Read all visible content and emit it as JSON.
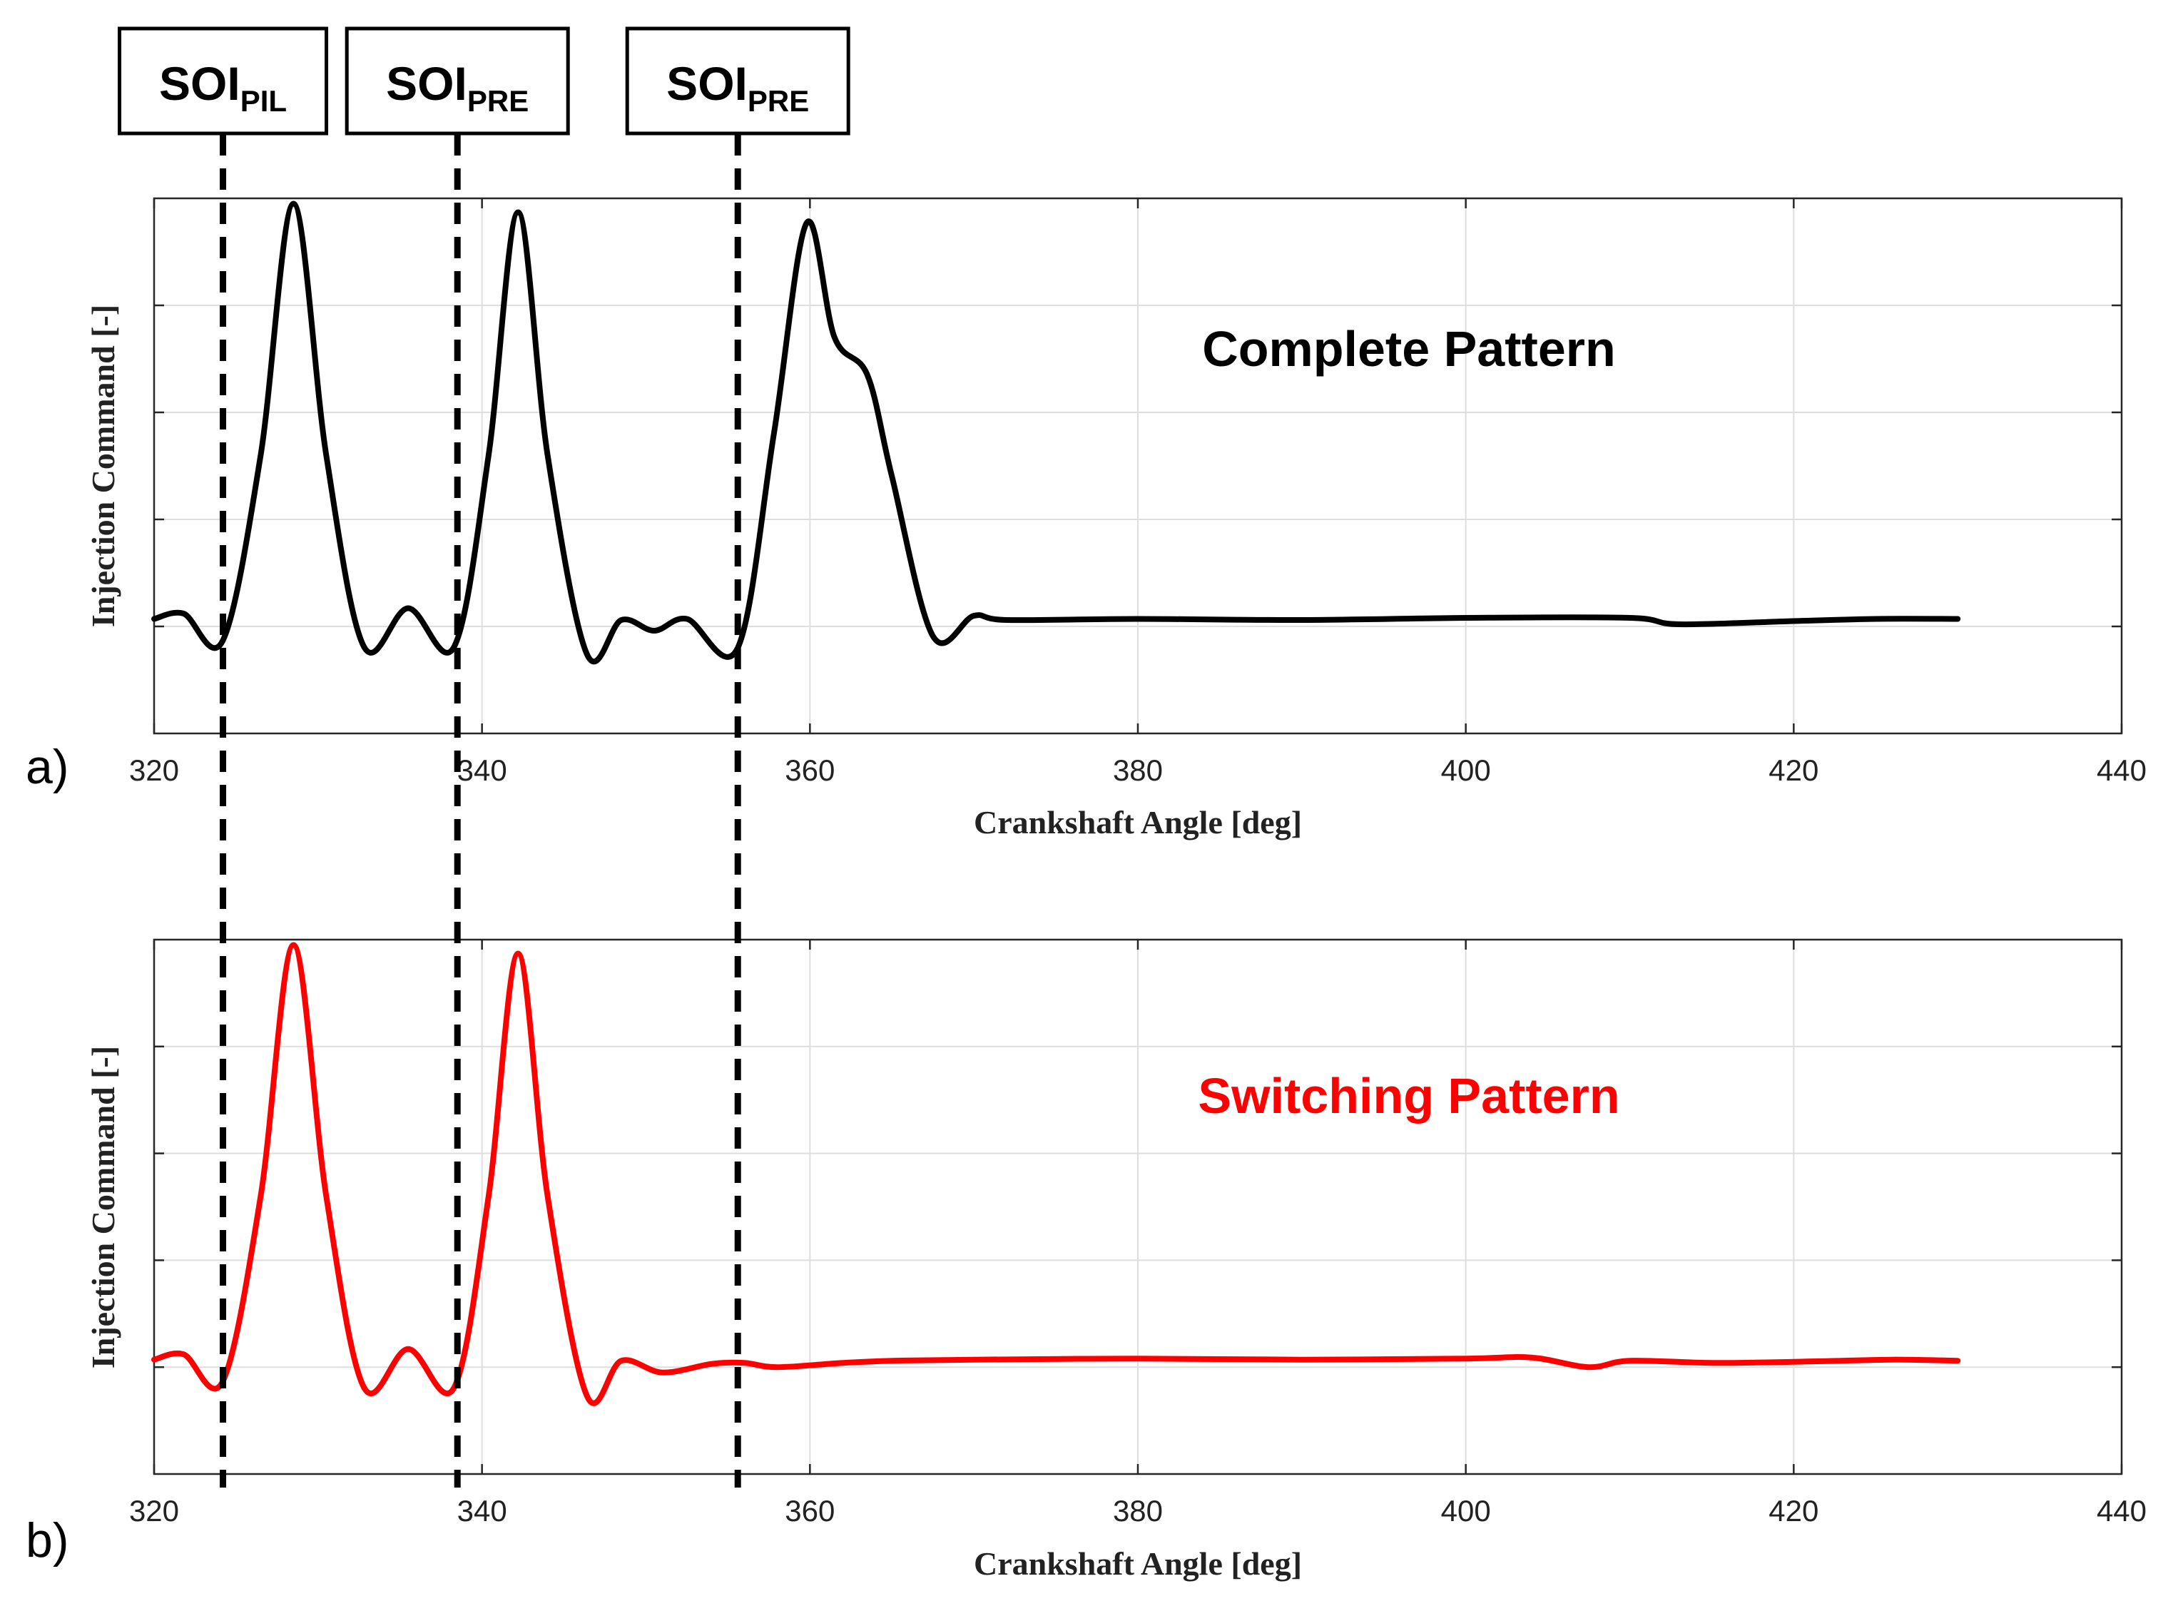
{
  "chart_data": {
    "type": "line",
    "shared_x_range": [
      320,
      440
    ],
    "soi_markers": [
      {
        "label": "SOI",
        "sub": "PIL",
        "x": 324.2
      },
      {
        "label": "SOI",
        "sub": "PRE",
        "x": 338.5
      },
      {
        "label": "SOI",
        "sub": "PRE",
        "x": 355.6
      }
    ],
    "panels": [
      {
        "panel_letter": "a)",
        "title": "Complete Pattern",
        "title_color": "#000000",
        "line_color": "#000000",
        "xlabel": "Crankshaft Angle [deg]",
        "ylabel": "Injection Command [-]",
        "xlim": [
          320,
          440
        ],
        "ylim": [
          -1,
          4
        ],
        "xticks": [
          320,
          340,
          360,
          380,
          400,
          420,
          440
        ],
        "tick_labels": [
          "320",
          "340",
          "360",
          "380",
          "400",
          "420",
          "440"
        ],
        "yticks": [
          0,
          1,
          2,
          3
        ],
        "grid": true,
        "x": [
          320,
          321.8,
          324.2,
          326.5,
          328.5,
          330.5,
          332.8,
          335.5,
          338.3,
          340.4,
          342.2,
          344,
          346.4,
          348.5,
          350.5,
          352.5,
          355.6,
          357.8,
          359.8,
          361.5,
          363.5,
          365,
          367.5,
          370,
          372,
          380,
          390,
          400,
          410,
          413,
          420,
          425,
          430
        ],
        "y": [
          0.07,
          0.12,
          -0.13,
          1.6,
          3.95,
          1.6,
          -0.19,
          0.17,
          -0.19,
          1.6,
          3.87,
          1.6,
          -0.26,
          0.06,
          -0.04,
          0.07,
          -0.2,
          1.8,
          3.77,
          2.7,
          2.35,
          1.4,
          -0.09,
          0.1,
          0.06,
          0.07,
          0.06,
          0.08,
          0.08,
          0.02,
          0.05,
          0.07,
          0.07
        ]
      },
      {
        "panel_letter": "b)",
        "title": "Switching Pattern",
        "title_color": "#ff0000",
        "line_color": "#ff0000",
        "xlabel": "Crankshaft Angle [deg]",
        "ylabel": "Injection Command [-]",
        "xlim": [
          320,
          440
        ],
        "ylim": [
          -1,
          4
        ],
        "xticks": [
          320,
          340,
          360,
          380,
          400,
          420,
          440
        ],
        "tick_labels": [
          "320",
          "340",
          "360",
          "380",
          "400",
          "420",
          "440"
        ],
        "yticks": [
          0,
          1,
          2,
          3
        ],
        "grid": true,
        "x": [
          320,
          321.8,
          324.2,
          326.5,
          328.5,
          330.5,
          332.8,
          335.5,
          338.3,
          340.4,
          342.2,
          344,
          346.4,
          348.5,
          351,
          354,
          356,
          358,
          362,
          365,
          370,
          380,
          390,
          400,
          404,
          407.5,
          410,
          415,
          420,
          426,
          430
        ],
        "y": [
          0.07,
          0.12,
          -0.13,
          1.6,
          3.95,
          1.6,
          -0.19,
          0.17,
          -0.19,
          1.6,
          3.87,
          1.6,
          -0.27,
          0.06,
          -0.05,
          0.03,
          0.04,
          0.0,
          0.04,
          0.06,
          0.07,
          0.08,
          0.07,
          0.08,
          0.09,
          0.0,
          0.06,
          0.04,
          0.05,
          0.07,
          0.06
        ]
      }
    ]
  }
}
